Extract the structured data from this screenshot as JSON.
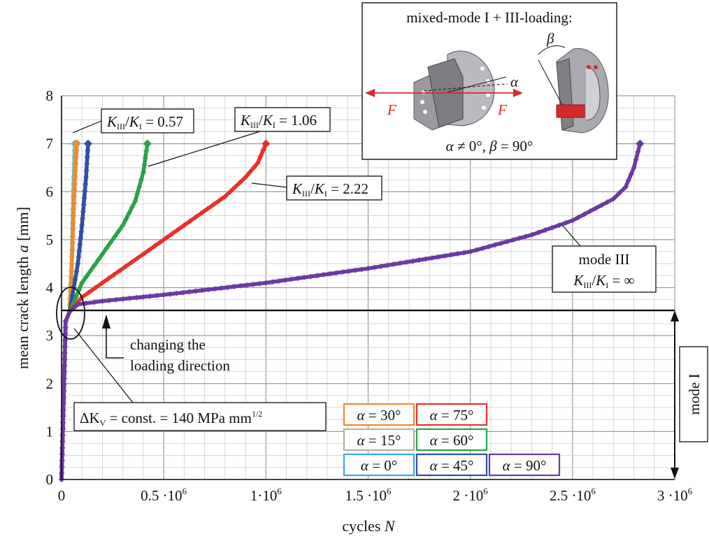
{
  "chart_data": {
    "type": "line",
    "xlabel_text": "cycles ",
    "xlabel_var": "N",
    "ylabel_text": "mean crack length ",
    "ylabel_var": "a",
    "ylabel_unit": " [mm]",
    "xlim": [
      0,
      3000000
    ],
    "ylim": [
      0,
      8
    ],
    "x_ticks": [
      0,
      500000,
      1000000,
      1500000,
      2000000,
      2500000,
      3000000
    ],
    "x_tick_labels": [
      "0",
      "0.5 ·10",
      "1·10",
      "1.5 ·10",
      "2 ·10",
      "2.5 ·10",
      "3 ·10"
    ],
    "x_tick_exponent": "6",
    "y_ticks": [
      0,
      1,
      2,
      3,
      4,
      5,
      6,
      7,
      8
    ],
    "y_tick_labels": [
      "0",
      "1",
      "2",
      "3",
      "4",
      "5",
      "6",
      "7",
      "8"
    ],
    "grid": true,
    "mode_change_level": 3.5,
    "series": [
      {
        "name": "α = 0°",
        "color": "#5bb8d8",
        "x": [
          0,
          20000,
          40000,
          50000,
          55000,
          60000,
          65000
        ],
        "y": [
          0,
          3.3,
          3.5,
          4.5,
          5.5,
          6.3,
          7.0
        ]
      },
      {
        "name": "α = 15°",
        "color": "#b5b29a",
        "x": [
          0,
          20000,
          40000,
          50000,
          57000,
          64000,
          70000
        ],
        "y": [
          0,
          3.3,
          3.5,
          4.5,
          5.5,
          6.3,
          7.0
        ]
      },
      {
        "name": "α = 30°",
        "color": "#ee8a2e",
        "x": [
          0,
          20000,
          40000,
          50000,
          58000,
          66000,
          75000
        ],
        "y": [
          0,
          3.3,
          3.5,
          4.5,
          5.5,
          6.3,
          7.0
        ]
      },
      {
        "name": "α = 45°",
        "color": "#2e4fa8",
        "x": [
          0,
          20000,
          40000,
          60000,
          80000,
          100000,
          120000,
          130000
        ],
        "y": [
          0,
          3.3,
          3.5,
          4.0,
          4.5,
          5.3,
          6.3,
          7.0
        ]
      },
      {
        "name": "α = 60°",
        "color": "#28a24a",
        "x": [
          0,
          20000,
          40000,
          100000,
          200000,
          300000,
          360000,
          400000,
          420000
        ],
        "y": [
          0,
          3.3,
          3.5,
          4.1,
          4.7,
          5.3,
          5.8,
          6.4,
          7.0
        ]
      },
      {
        "name": "α = 75°",
        "color": "#e8302a",
        "x": [
          0,
          20000,
          40000,
          100000,
          200000,
          400000,
          600000,
          800000,
          900000,
          960000,
          1000000
        ],
        "y": [
          0,
          3.3,
          3.5,
          3.8,
          4.1,
          4.7,
          5.3,
          5.9,
          6.3,
          6.6,
          7.0
        ]
      },
      {
        "name": "α = 90°",
        "color": "#6a3aa2",
        "x": [
          0,
          20000,
          40000,
          80000,
          200000,
          500000,
          1000000,
          1500000,
          2000000,
          2300000,
          2500000,
          2700000,
          2760000,
          2800000,
          2830000
        ],
        "y": [
          0,
          3.3,
          3.5,
          3.65,
          3.72,
          3.85,
          4.1,
          4.4,
          4.75,
          5.1,
          5.4,
          5.85,
          6.1,
          6.5,
          7.0
        ]
      }
    ]
  },
  "annotations": {
    "k_057": {
      "a": "K",
      "a_sub": "III",
      "b": "/",
      "c": "K",
      "c_sub": "I",
      "d": " = 0.57"
    },
    "k_106": {
      "a": "K",
      "a_sub": "III",
      "b": "/",
      "c": "K",
      "c_sub": "I",
      "d": " = 1.06"
    },
    "k_222": {
      "a": "K",
      "a_sub": "III",
      "b": "/",
      "c": "K",
      "c_sub": "I",
      "d": " = 2.22"
    },
    "mode3_line1": "mode III",
    "mode3_k": {
      "a": "K",
      "a_sub": "III",
      "b": "/",
      "c": "K",
      "c_sub": "I",
      "d": " = ∞"
    },
    "changing_line1": "changing the",
    "changing_line2": "loading direction",
    "delta_k": {
      "a": "ΔK",
      "a_sub": "V",
      "b": " = const. = 140 MPa mm",
      "sup": "1/2"
    },
    "mode1": "mode I"
  },
  "inset": {
    "title": "mixed-mode I + III-loading:",
    "F_left": "F",
    "F_right": "F",
    "alpha": "α",
    "beta": "β",
    "caption_a": "α",
    "caption_mid": " ≠ 0°, ",
    "caption_b": "β",
    "caption_end": " = 90°"
  },
  "legend_boxes": [
    {
      "label": "α = 30°",
      "color": "#ee8a2e"
    },
    {
      "label": "α = 75°",
      "color": "#e8302a"
    },
    {
      "label": "α = 15°",
      "color": "#b5b29a"
    },
    {
      "label": "α = 60°",
      "color": "#28a24a"
    },
    {
      "label": "α = 0°",
      "color": "#3aa7dc"
    },
    {
      "label": "α = 45°",
      "color": "#2e4fa8"
    },
    {
      "label": "α = 90°",
      "color": "#6a3aa2"
    }
  ]
}
